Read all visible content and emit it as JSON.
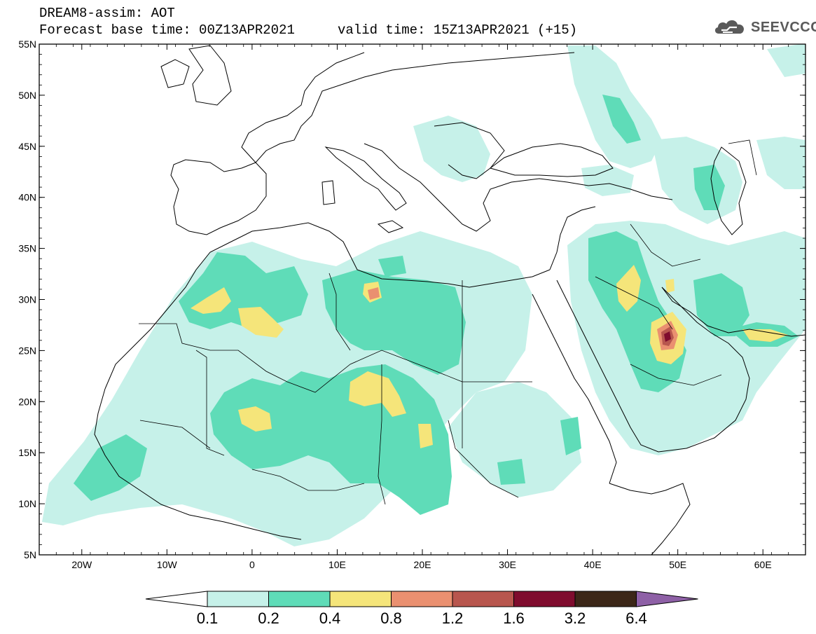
{
  "header": {
    "line1": "DREAM8-assim: AOT",
    "base_time": "Forecast base time: 00Z13APR2021",
    "valid_time": "valid time: 15Z13APR2021 (+15)"
  },
  "logo": {
    "text": "SEEVCCC",
    "icon": "cloud-icon"
  },
  "map": {
    "lon_range": [
      -25,
      65
    ],
    "lat_range": [
      5,
      55
    ],
    "lat_labels": [
      "55N",
      "50N",
      "45N",
      "40N",
      "35N",
      "30N",
      "25N",
      "20N",
      "15N",
      "10N",
      "5N"
    ],
    "lon_labels": [
      "20W",
      "10W",
      "0",
      "10E",
      "20E",
      "30E",
      "40E",
      "50E",
      "60E"
    ]
  },
  "legend": {
    "labels": [
      "0.1",
      "0.2",
      "0.4",
      "0.8",
      "1.2",
      "1.6",
      "3.2",
      "6.4"
    ],
    "colors": [
      "#ffffff",
      "#c6f1e9",
      "#5fdcb8",
      "#f5e57a",
      "#ea9070",
      "#b8564e",
      "#7f0c2e",
      "#3c2718",
      "#8e60a6"
    ]
  }
}
